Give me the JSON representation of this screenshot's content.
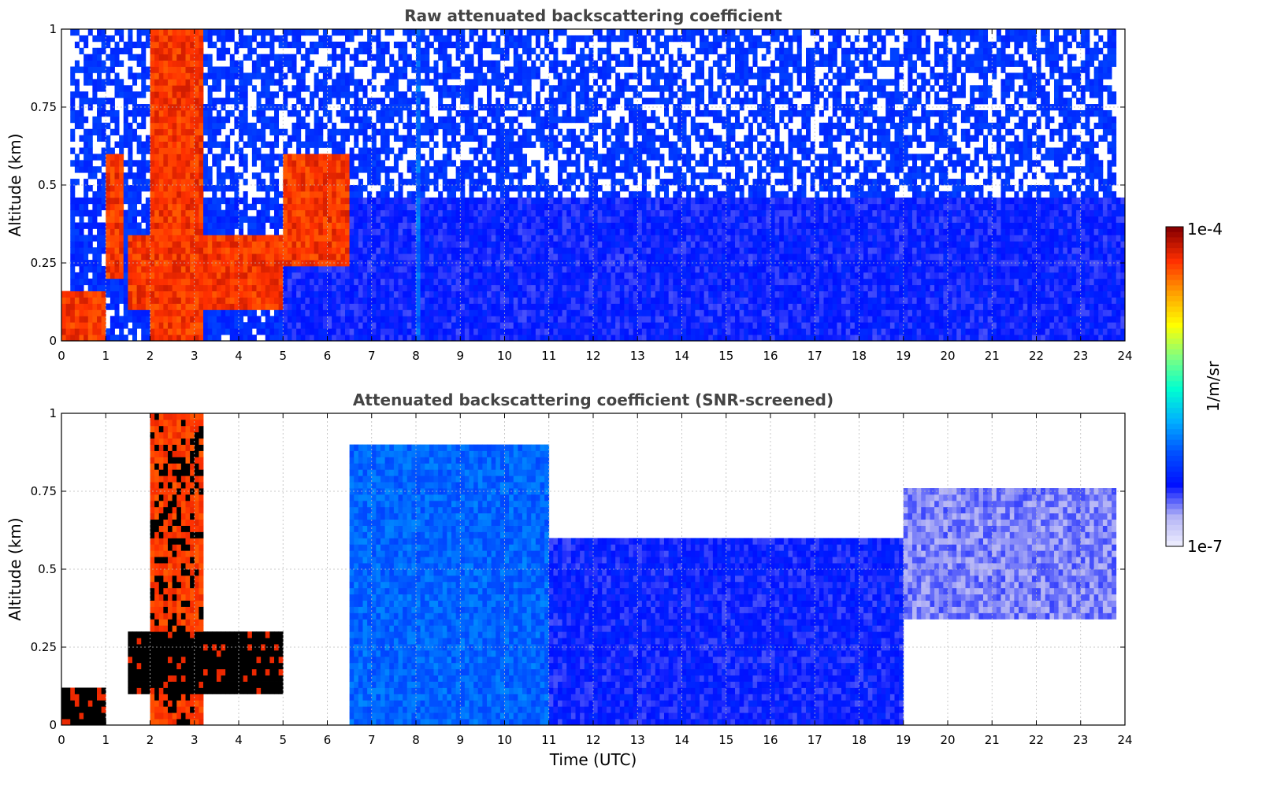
{
  "chart_data": [
    {
      "type": "heatmap",
      "title": "Raw attenuated backscattering coefficient",
      "xlabel": "",
      "ylabel": "Altitude (km)",
      "xlim": [
        0,
        24
      ],
      "ylim": [
        0,
        1
      ],
      "x_ticks": [
        "0",
        "1",
        "2",
        "3",
        "4",
        "5",
        "6",
        "7",
        "8",
        "9",
        "10",
        "11",
        "12",
        "13",
        "14",
        "15",
        "16",
        "17",
        "18",
        "19",
        "20",
        "21",
        "22",
        "23",
        "24"
      ],
      "y_ticks": [
        "0",
        "0.25",
        "0.5",
        "0.75",
        "1"
      ],
      "grid": true,
      "color_scale": "log",
      "colorbar_range": [
        "1e-7",
        "1e-4"
      ],
      "colorbar_label": "1/m/sr",
      "colormap": [
        "#f5f5ff",
        "#b4b4f5",
        "#0010ff",
        "#0050ff",
        "#00b0ff",
        "#00ffd0",
        "#80ff80",
        "#ffff00",
        "#ffa000",
        "#ff3000",
        "#8b0000"
      ],
      "features": [
        {
          "x_range": [
            0,
            1.0
          ],
          "alt_range": [
            0,
            0.15
          ],
          "level": "high"
        },
        {
          "x_range": [
            1.0,
            1.4
          ],
          "alt_range": [
            0.2,
            0.6
          ],
          "level": "high"
        },
        {
          "x_range": [
            1.5,
            5.0
          ],
          "alt_range": [
            0.1,
            0.35
          ],
          "level": "high"
        },
        {
          "x_range": [
            2.0,
            3.2
          ],
          "alt_range": [
            0,
            1
          ],
          "level": "high"
        },
        {
          "x_range": [
            5.0,
            6.5
          ],
          "alt_range": [
            0.25,
            0.6
          ],
          "level": "high"
        },
        {
          "x_range": [
            8.0,
            8.05
          ],
          "alt_range": [
            0,
            1
          ],
          "level": "medium"
        },
        {
          "x_range": [
            5,
            24
          ],
          "alt_range": [
            0,
            0.45
          ],
          "level": "low"
        }
      ]
    },
    {
      "type": "heatmap",
      "title": "Attenuated backscattering coefficient (SNR-screened)",
      "xlabel": "Time (UTC)",
      "ylabel": "Altitude (km)",
      "xlim": [
        0,
        24
      ],
      "ylim": [
        0,
        1
      ],
      "x_ticks": [
        "0",
        "1",
        "2",
        "3",
        "4",
        "5",
        "6",
        "7",
        "8",
        "9",
        "10",
        "11",
        "12",
        "13",
        "14",
        "15",
        "16",
        "17",
        "18",
        "19",
        "20",
        "21",
        "22",
        "23",
        "24"
      ],
      "y_ticks": [
        "0",
        "0.25",
        "0.5",
        "0.75",
        "1"
      ],
      "grid": true,
      "color_scale": "log",
      "colorbar_range": [
        "1e-7",
        "1e-4"
      ],
      "colorbar_label": "1/m/sr",
      "features": [
        {
          "x_range": [
            0,
            1.0
          ],
          "alt_range": [
            0,
            0.12
          ],
          "level": "saturated"
        },
        {
          "x_range": [
            1.5,
            5.0
          ],
          "alt_range": [
            0.1,
            0.3
          ],
          "level": "saturated"
        },
        {
          "x_range": [
            2.0,
            3.2
          ],
          "alt_range": [
            0,
            1
          ],
          "level": "high"
        },
        {
          "x_range": [
            6.5,
            11
          ],
          "alt_range": [
            0,
            0.9
          ],
          "level": "medium"
        },
        {
          "x_range": [
            11,
            19
          ],
          "alt_range": [
            0,
            0.6
          ],
          "level": "low"
        },
        {
          "x_range": [
            19,
            23.8
          ],
          "alt_range": [
            0.35,
            0.75
          ],
          "level": "very-low"
        }
      ]
    }
  ]
}
